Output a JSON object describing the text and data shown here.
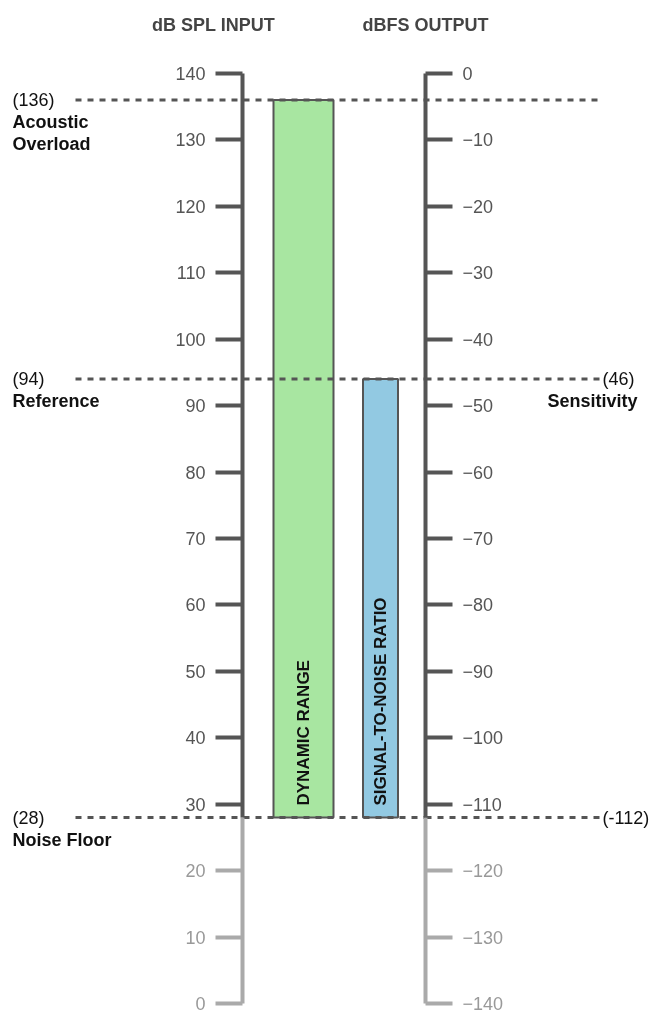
{
  "chart_data": {
    "type": "bar",
    "ylabel": "dB SPL INPUT",
    "y2label": "dBFS OUTPUT",
    "categories": [
      "DYNAMIC RANGE",
      "SIGNAL-TO-NOISE RATIO"
    ],
    "base": [
      28,
      28
    ],
    "values": [
      108,
      66
    ],
    "colors": [
      "#a8e6a1",
      "#92c9e2"
    ],
    "ylim": [
      0,
      140
    ],
    "yticks": [
      0,
      10,
      20,
      30,
      40,
      50,
      60,
      70,
      80,
      90,
      100,
      110,
      120,
      130,
      140
    ],
    "y2lim": [
      -140,
      0
    ],
    "y2ticks": [
      -140,
      -130,
      -120,
      -110,
      -100,
      -90,
      -80,
      -70,
      -60,
      -50,
      -40,
      -30,
      -20,
      -10,
      0
    ],
    "ref_lines": [
      {
        "axis": "y",
        "value": 136,
        "label": "(136) Acoustic Overload"
      },
      {
        "axis": "y",
        "value": 94,
        "label": "(94) Reference"
      },
      {
        "axis": "y",
        "value": 28,
        "label": "(28) Noise Floor"
      },
      {
        "axis": "y2",
        "value": -46,
        "label": "(46) Sensitivity"
      },
      {
        "axis": "y2",
        "value": -112,
        "label": "(-112)"
      }
    ]
  }
}
